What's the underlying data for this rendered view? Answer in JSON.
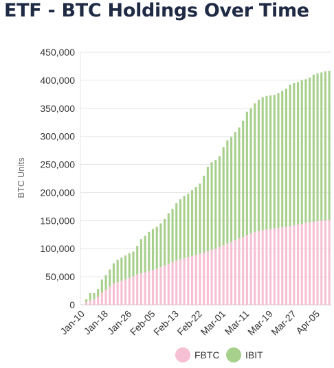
{
  "page": {
    "title": "ETF - BTC Holdings Over Time"
  },
  "chart_data": {
    "type": "bar",
    "stacked": true,
    "ylabel": "BTC Units",
    "ylim": [
      0,
      450000
    ],
    "yticks": [
      0,
      50000,
      100000,
      150000,
      200000,
      250000,
      300000,
      350000,
      400000,
      450000
    ],
    "ytick_labels": [
      "0",
      "50,000",
      "100,000",
      "150,000",
      "200,000",
      "250,000",
      "300,000",
      "350,000",
      "400,000",
      "450,000"
    ],
    "xtick_labels": [
      "Jan-10",
      "Jan-18",
      "Jan-26",
      "Feb-05",
      "Feb-13",
      "Feb-22",
      "Mar-01",
      "Mar-11",
      "Mar-19",
      "Mar-27",
      "Apr-05"
    ],
    "xtick_every": 6,
    "grid": true,
    "legend_position": "bottom",
    "series": [
      {
        "name": "FBTC",
        "color": "#f7bfd3",
        "values": [
          0,
          5000,
          8000,
          10000,
          14000,
          22000,
          27000,
          33000,
          38000,
          40000,
          43000,
          46000,
          48000,
          51000,
          54000,
          56000,
          58000,
          60000,
          62000,
          64000,
          67000,
          70000,
          73000,
          76000,
          79000,
          81000,
          83000,
          85000,
          87000,
          89000,
          91000,
          93000,
          95000,
          98000,
          100000,
          103000,
          106000,
          109000,
          112000,
          115000,
          118000,
          121000,
          124000,
          127000,
          130000,
          132000,
          133000,
          134000,
          135000,
          136000,
          137000,
          138000,
          139000,
          140000,
          142000,
          143000,
          144000,
          146000,
          147000,
          148000,
          149000,
          150000,
          150500,
          151000
        ]
      },
      {
        "name": "IBIT",
        "color": "#a8d08d",
        "values": [
          0,
          5000,
          13000,
          11000,
          14000,
          23000,
          26000,
          30000,
          36000,
          40000,
          41000,
          42000,
          44000,
          44000,
          51000,
          61000,
          65000,
          70000,
          73000,
          75000,
          78000,
          83000,
          90000,
          95000,
          102000,
          107000,
          111000,
          113000,
          117000,
          121000,
          125000,
          137000,
          151000,
          156000,
          158000,
          162000,
          175000,
          184000,
          187000,
          193000,
          198000,
          207000,
          220000,
          223000,
          229000,
          233000,
          237000,
          238000,
          238000,
          238000,
          240000,
          243000,
          246000,
          252000,
          253000,
          254000,
          256000,
          256000,
          258000,
          262000,
          263000,
          264000,
          265500,
          266000
        ]
      }
    ]
  }
}
